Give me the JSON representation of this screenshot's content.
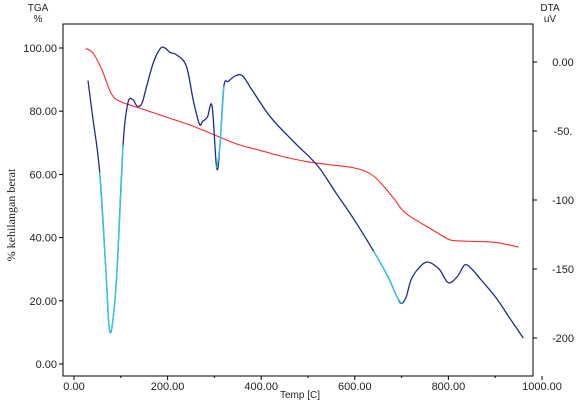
{
  "chart_data": {
    "type": "line",
    "left_axis_title": "TGA",
    "left_axis_unit": "%",
    "right_axis_title": "DTA",
    "right_axis_unit": "uV",
    "ylabel": "% kehilangan berat",
    "xlabel": "Temp [C]",
    "xlim": [
      0,
      1000
    ],
    "ylim_left": [
      0,
      100
    ],
    "ylim_right": [
      -200,
      0
    ],
    "x_ticks": [
      "0.00",
      "200.00",
      "400.00",
      "600.00",
      "800.00",
      "1000.00"
    ],
    "y_ticks_left": [
      "0.00",
      "20.00",
      "40.00",
      "60.00",
      "80.00",
      "100.00"
    ],
    "y_ticks_right": [
      "0.00",
      "-50.",
      "-100",
      "-150",
      "-200"
    ],
    "colors": {
      "tga": "#ff2a2a",
      "dta": "#1f2a8a",
      "dta_highlight": "#33c8e8",
      "axis": "#000000"
    },
    "series": [
      {
        "key": "tga",
        "axis": "left",
        "x": [
          25,
          40,
          60,
          80,
          100,
          150,
          200,
          250,
          300,
          350,
          400,
          450,
          500,
          550,
          600,
          640,
          680,
          700,
          720,
          760,
          800,
          820,
          850,
          900,
          950
        ],
        "y": [
          99.8,
          98.5,
          93.0,
          85.5,
          83.0,
          80.5,
          78.0,
          75.5,
          72.5,
          69.5,
          67.5,
          65.5,
          64.0,
          63.0,
          62.0,
          59.5,
          53.0,
          49.0,
          46.5,
          43.0,
          39.5,
          39.0,
          38.8,
          38.5,
          37.0
        ]
      },
      {
        "key": "dta",
        "axis": "right",
        "x": [
          30,
          40,
          55,
          68,
          75,
          82,
          92,
          105,
          115,
          125,
          135,
          145,
          155,
          170,
          185,
          195,
          205,
          220,
          240,
          255,
          268,
          275,
          285,
          295,
          305,
          312,
          320,
          330,
          345,
          360,
          380,
          420,
          470,
          520,
          560,
          600,
          640,
          670,
          690,
          700,
          710,
          720,
          735,
          755,
          780,
          800,
          820,
          835,
          850,
          870,
          900,
          930,
          960
        ],
        "y": [
          -13.5,
          -40,
          -80,
          -150,
          -192,
          -190,
          -150,
          -60,
          -30,
          -27,
          -32,
          -30,
          -18,
          0,
          10,
          10,
          7,
          5,
          -3,
          -28,
          -45,
          -43,
          -40,
          -32,
          -77,
          -60,
          -18,
          -14,
          -10,
          -10,
          -20,
          -40,
          -58,
          -75,
          -95,
          -115,
          -137,
          -155,
          -170,
          -175,
          -170,
          -158,
          -150,
          -145,
          -150,
          -160,
          -155,
          -147,
          -150,
          -158,
          -170,
          -185,
          -200
        ]
      },
      {
        "key": "dta_highlight_1",
        "axis": "right",
        "x": [
          55,
          68,
          75,
          82,
          92,
          105
        ],
        "y": [
          -80,
          -150,
          -192,
          -190,
          -150,
          -60
        ]
      },
      {
        "key": "dta_highlight_2",
        "axis": "right",
        "x": [
          305,
          312,
          320
        ],
        "y": [
          -77,
          -60,
          -18
        ]
      },
      {
        "key": "dta_highlight_3",
        "axis": "right",
        "x": [
          640,
          670,
          690,
          700
        ],
        "y": [
          -137,
          -155,
          -170,
          -175
        ]
      }
    ]
  }
}
